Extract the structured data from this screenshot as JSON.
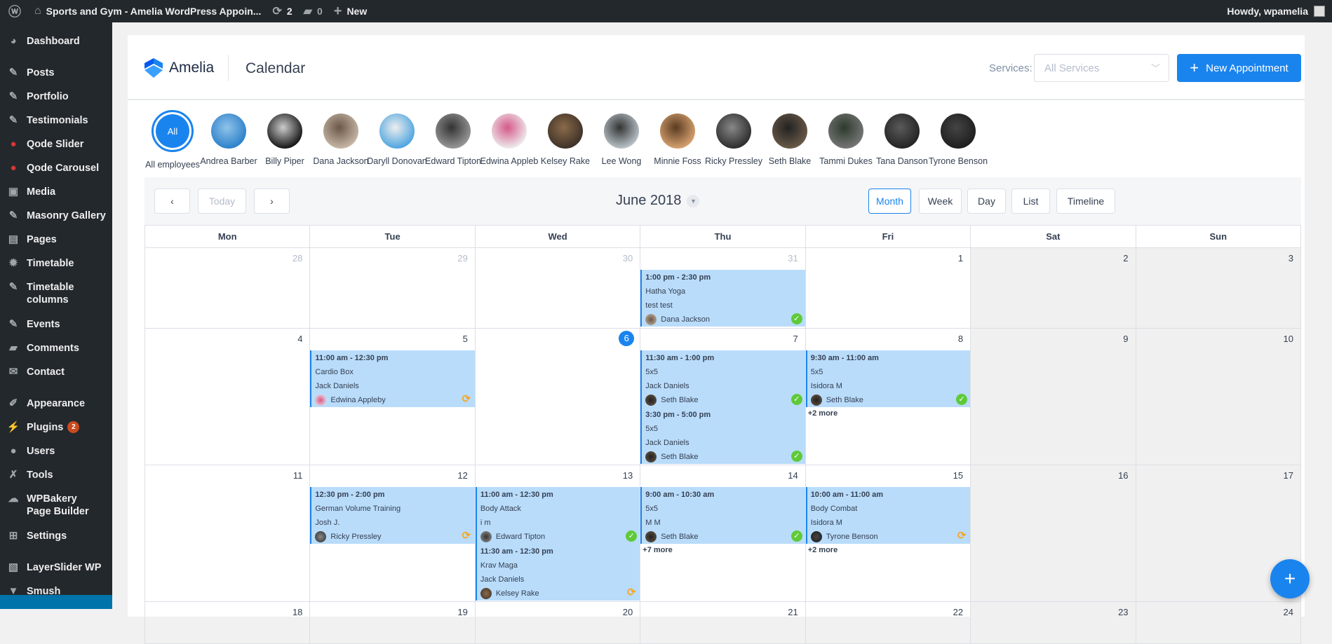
{
  "topbar": {
    "site_title": "Sports and Gym - Amelia WordPress Appoin...",
    "updates": "2",
    "comments": "0",
    "new_label": "New",
    "howdy": "Howdy, wpamelia"
  },
  "sidebar": {
    "items": [
      {
        "label": "Dashboard",
        "icon": "dashboard-icon",
        "glyph": "◕",
        "sep": true
      },
      {
        "label": "Posts",
        "icon": "pin-icon",
        "glyph": "✎"
      },
      {
        "label": "Portfolio",
        "icon": "pin-icon",
        "glyph": "✎"
      },
      {
        "label": "Testimonials",
        "icon": "pin-icon",
        "glyph": "✎"
      },
      {
        "label": "Qode Slider",
        "icon": "qode-icon",
        "glyph": "●",
        "red": true
      },
      {
        "label": "Qode Carousel",
        "icon": "qode-icon",
        "glyph": "●",
        "red": true
      },
      {
        "label": "Media",
        "icon": "media-icon",
        "glyph": "▣"
      },
      {
        "label": "Masonry Gallery",
        "icon": "pin-icon",
        "glyph": "✎"
      },
      {
        "label": "Pages",
        "icon": "pages-icon",
        "glyph": "▤"
      },
      {
        "label": "Timetable",
        "icon": "gear-icon",
        "glyph": "✹"
      },
      {
        "label": "Timetable columns",
        "icon": "pin-icon",
        "glyph": "✎",
        "dbl": true
      },
      {
        "label": "Events",
        "icon": "pin-icon",
        "glyph": "✎"
      },
      {
        "label": "Comments",
        "icon": "comment-icon",
        "glyph": "▰"
      },
      {
        "label": "Contact",
        "icon": "mail-icon",
        "glyph": "✉",
        "sep": true
      },
      {
        "label": "Appearance",
        "icon": "brush-icon",
        "glyph": "✐"
      },
      {
        "label": "Plugins",
        "icon": "plugin-icon",
        "glyph": "⚡",
        "badge": "2"
      },
      {
        "label": "Users",
        "icon": "user-icon",
        "glyph": "●"
      },
      {
        "label": "Tools",
        "icon": "wrench-icon",
        "glyph": "✗"
      },
      {
        "label": "WPBakery Page Builder",
        "icon": "cloud-icon",
        "glyph": "☁",
        "dbl": true
      },
      {
        "label": "Settings",
        "icon": "settings-icon",
        "glyph": "⊞",
        "sep": true
      },
      {
        "label": "LayerSlider WP",
        "icon": "layers-icon",
        "glyph": "▧"
      },
      {
        "label": "Smush",
        "icon": "smush-icon",
        "glyph": "▼"
      }
    ]
  },
  "header": {
    "brand": "Amelia",
    "page_title": "Calendar",
    "services_label": "Services:",
    "services_placeholder": "All Services",
    "new_appointment": "New Appointment"
  },
  "accent": "#1a84ee",
  "employees": [
    {
      "name": "All employees",
      "all": true,
      "short": "All"
    },
    {
      "name": "Andrea Barber",
      "c1": "#2a7fc9",
      "c2": "#8fc3ea"
    },
    {
      "name": "Billy Piper",
      "c1": "#111",
      "c2": "#ccc"
    },
    {
      "name": "Dana Jackson",
      "c1": "#c9b9a8",
      "c2": "#6b5748"
    },
    {
      "name": "Daryll Donovan",
      "c1": "#4aa3e0",
      "c2": "#eee"
    },
    {
      "name": "Edward Tipton",
      "c1": "#999",
      "c2": "#333"
    },
    {
      "name": "Edwina Appleb",
      "c1": "#eee",
      "c2": "#d55a8a"
    },
    {
      "name": "Kelsey Rake",
      "c1": "#3c3026",
      "c2": "#8a6a4a"
    },
    {
      "name": "Lee Wong",
      "c1": "#bcc6cc",
      "c2": "#333"
    },
    {
      "name": "Minnie Foss",
      "c1": "#d9a470",
      "c2": "#5a3b22"
    },
    {
      "name": "Ricky Pressley",
      "c1": "#2b2b2b",
      "c2": "#888"
    },
    {
      "name": "Seth Blake",
      "c1": "#6b5a48",
      "c2": "#222"
    },
    {
      "name": "Tammi Dukes",
      "c1": "#777",
      "c2": "#2d3a2d"
    },
    {
      "name": "Tana Danson",
      "c1": "#222",
      "c2": "#5a5a5a"
    },
    {
      "name": "Tyrone Benson",
      "c1": "#1d1d1d",
      "c2": "#444"
    }
  ],
  "calendar": {
    "prev": "‹",
    "today": "Today",
    "next": "›",
    "month_title": "June 2018",
    "views": [
      {
        "label": "Month",
        "active": true
      },
      {
        "label": "Week"
      },
      {
        "label": "Day"
      },
      {
        "label": "List"
      },
      {
        "label": "Timeline"
      }
    ],
    "weekdays": [
      "Mon",
      "Tue",
      "Wed",
      "Thu",
      "Fri",
      "Sat",
      "Sun"
    ],
    "weeks": [
      [
        {
          "day": "28",
          "muted": true
        },
        {
          "day": "29",
          "muted": true
        },
        {
          "day": "30",
          "muted": true
        },
        {
          "day": "31",
          "muted": true,
          "events": [
            {
              "time": "1:00 pm - 2:30 pm",
              "service": "Hatha Yoga",
              "customer": "test test",
              "employee": "Dana Jackson",
              "status": "approved"
            }
          ]
        },
        {
          "day": "1"
        },
        {
          "day": "2"
        },
        {
          "day": "3"
        }
      ],
      [
        {
          "day": "4"
        },
        {
          "day": "5",
          "events": [
            {
              "time": "11:00 am - 12:30 pm",
              "service": "Cardio Box",
              "customer": "Jack Daniels",
              "employee": "Edwina Appleby",
              "status": "pending"
            }
          ]
        },
        {
          "day": "6",
          "today": true
        },
        {
          "day": "7",
          "events": [
            {
              "time": "11:30 am - 1:00 pm",
              "service": "5x5",
              "customer": "Jack Daniels",
              "employee": "Seth Blake",
              "status": "approved"
            },
            {
              "time": "3:30 pm - 5:00 pm",
              "service": "5x5",
              "customer": "Jack Daniels",
              "employee": "Seth Blake",
              "status": "approved"
            }
          ]
        },
        {
          "day": "8",
          "events": [
            {
              "time": "9:30 am - 11:00 am",
              "service": "5x5",
              "customer": "Isidora M",
              "employee": "Seth Blake",
              "status": "approved"
            }
          ],
          "more": "+2 more"
        },
        {
          "day": "9"
        },
        {
          "day": "10"
        }
      ],
      [
        {
          "day": "11"
        },
        {
          "day": "12",
          "events": [
            {
              "time": "12:30 pm - 2:00 pm",
              "service": "German Volume Training",
              "customer": "Josh J.",
              "employee": "Ricky Pressley",
              "status": "pending"
            }
          ]
        },
        {
          "day": "13",
          "events": [
            {
              "time": "11:00 am - 12:30 pm",
              "service": "Body Attack",
              "customer": "i m",
              "employee": "Edward Tipton",
              "status": "approved"
            },
            {
              "time": "11:30 am - 12:30 pm",
              "service": "Krav Maga",
              "customer": "Jack Daniels",
              "employee": "Kelsey Rake",
              "status": "pending"
            }
          ]
        },
        {
          "day": "14",
          "events": [
            {
              "time": "9:00 am - 10:30 am",
              "service": "5x5",
              "customer": "M M",
              "employee": "Seth Blake",
              "status": "approved"
            }
          ],
          "more": "+7 more"
        },
        {
          "day": "15",
          "events": [
            {
              "time": "10:00 am - 11:00 am",
              "service": "Body Combat",
              "customer": "Isidora M",
              "employee": "Tyrone Benson",
              "status": "pending"
            }
          ],
          "more": "+2 more"
        },
        {
          "day": "16"
        },
        {
          "day": "17"
        }
      ],
      [
        {
          "day": "18"
        },
        {
          "day": "19"
        },
        {
          "day": "20"
        },
        {
          "day": "21"
        },
        {
          "day": "22"
        },
        {
          "day": "23"
        },
        {
          "day": "24"
        }
      ]
    ]
  },
  "fab": "+"
}
